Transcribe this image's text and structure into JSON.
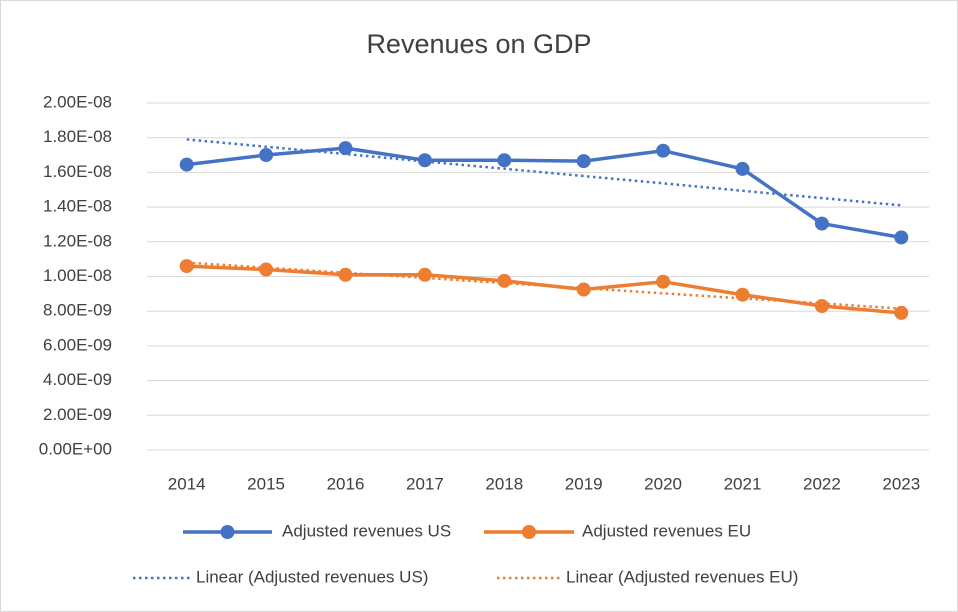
{
  "chart_data": {
    "type": "line",
    "title": "Revenues on GDP",
    "categories": [
      "2014",
      "2015",
      "2016",
      "2017",
      "2018",
      "2019",
      "2020",
      "2021",
      "2022",
      "2023"
    ],
    "series": [
      {
        "name": "Adjusted revenues US",
        "color": "#4472c4",
        "line_style": "solid",
        "markers": true,
        "values": [
          1.645e-08,
          1.7e-08,
          1.74e-08,
          1.67e-08,
          1.67e-08,
          1.665e-08,
          1.725e-08,
          1.62e-08,
          1.305e-08,
          1.225e-08
        ]
      },
      {
        "name": "Adjusted revenues EU",
        "color": "#ed7d31",
        "line_style": "solid",
        "markers": true,
        "values": [
          1.06e-08,
          1.04e-08,
          1.01e-08,
          1.01e-08,
          9.75e-09,
          9.25e-09,
          9.7e-09,
          8.95e-09,
          8.3e-09,
          7.9e-09
        ]
      },
      {
        "name": "Linear (Adjusted revenues US)",
        "color": "#4472c4",
        "line_style": "dotted",
        "markers": false,
        "values": [
          1.79e-08,
          1.748e-08,
          1.706e-08,
          1.663e-08,
          1.621e-08,
          1.579e-08,
          1.537e-08,
          1.494e-08,
          1.452e-08,
          1.41e-08
        ]
      },
      {
        "name": "Linear (Adjusted revenues EU)",
        "color": "#ed7d31",
        "line_style": "dotted",
        "markers": false,
        "values": [
          1.08e-08,
          1.051e-08,
          1.021e-08,
          9.92e-09,
          9.62e-09,
          9.33e-09,
          9.03e-09,
          8.74e-09,
          8.45e-09,
          8.15e-09
        ]
      }
    ],
    "ylim": [
      0,
      2e-08
    ],
    "yticks": [
      {
        "value": 0,
        "label": "0.00E+00"
      },
      {
        "value": 2e-09,
        "label": "2.00E-09"
      },
      {
        "value": 4e-09,
        "label": "4.00E-09"
      },
      {
        "value": 6e-09,
        "label": "6.00E-09"
      },
      {
        "value": 8e-09,
        "label": "8.00E-09"
      },
      {
        "value": 1e-08,
        "label": "1.00E-08"
      },
      {
        "value": 1.2e-08,
        "label": "1.20E-08"
      },
      {
        "value": 1.4e-08,
        "label": "1.40E-08"
      },
      {
        "value": 1.6e-08,
        "label": "1.60E-08"
      },
      {
        "value": 1.8e-08,
        "label": "1.80E-08"
      },
      {
        "value": 2e-08,
        "label": "2.00E-08"
      }
    ],
    "grid": true,
    "legend": "bottom"
  }
}
